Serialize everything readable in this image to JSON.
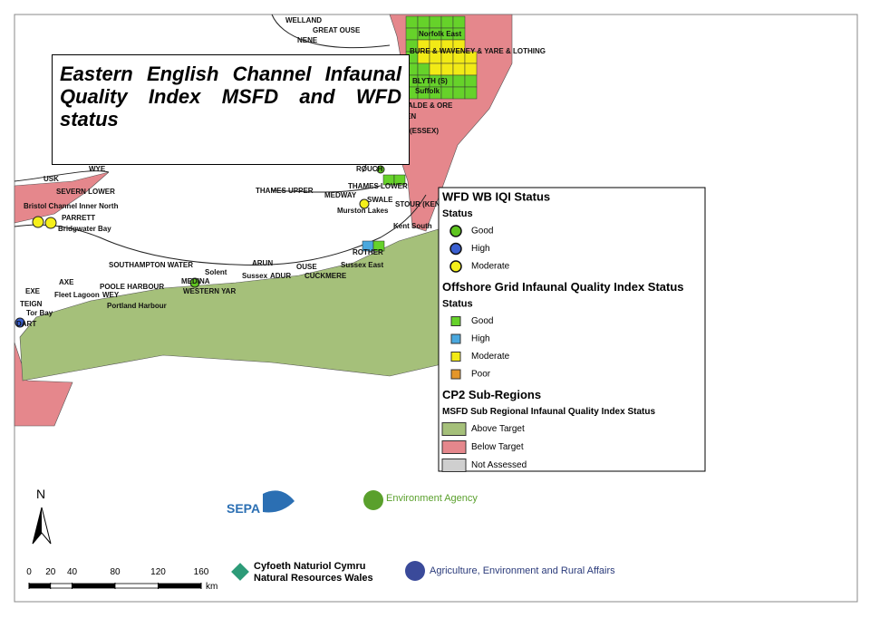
{
  "title": "Eastern English Channel Infaunal Quality Index MSFD and WFD status",
  "place_labels": [
    "WELLAND",
    "GREAT OUSE",
    "NENE",
    "Norfolk East",
    "BURE & WAVENEY & YARE & LOTHING",
    "BLYTH (S)",
    "Suffolk",
    "ALDE & ORE",
    "EN",
    "(ESSEX)",
    "ROUCH",
    "WYE",
    "USK",
    "SEVERN LOWER",
    "Bristol Channel Inner North",
    "PARRETT",
    "Bridgwater Bay",
    "THAMES UPPER",
    "THAMES LOWER",
    "MEDWAY",
    "SWALE",
    "Murston Lakes",
    "STOUR (KENT)",
    "Kent South",
    "ROTHER",
    "Sussex East",
    "ARUN",
    "OUSE",
    "Sussex",
    "ADUR",
    "CUCKMERE",
    "SOUTHAMPTON WATER",
    "Solent",
    "AXE",
    "POOLE HARBOUR",
    "MEDINA",
    "WESTERN YAR",
    "EXE",
    "Fleet Lagoon",
    "WEY",
    "Portland Harbour",
    "TEIGN",
    "Tor Bay",
    "DART"
  ],
  "legend": [
    {
      "heading": "WFD WB IQI Status",
      "subheading": "Status",
      "shape": "circle",
      "items": [
        {
          "label": "Good",
          "color": "#5ec41e"
        },
        {
          "label": "High",
          "color": "#3a5fd0"
        },
        {
          "label": "Moderate",
          "color": "#f5ef1a"
        }
      ]
    },
    {
      "heading": "Offshore Grid Infaunal Quality Index Status",
      "subheading": "Status",
      "shape": "square",
      "items": [
        {
          "label": "Good",
          "color": "#66d22a"
        },
        {
          "label": "High",
          "color": "#4aa8de"
        },
        {
          "label": "Moderate",
          "color": "#f2ea16"
        },
        {
          "label": "Poor",
          "color": "#e3962a"
        }
      ]
    },
    {
      "heading": "CP2 Sub-Regions",
      "subheading": "MSFD Sub Regional Infaunal Quality Index Status",
      "shape": "box",
      "items": [
        {
          "label": "Above Target",
          "color": "#a5c07a"
        },
        {
          "label": "Below Target",
          "color": "#e5878c"
        },
        {
          "label": "Not Assessed",
          "color": "#cfcfcf"
        }
      ]
    }
  ],
  "north": "N",
  "scale": {
    "ticks": [
      0,
      20,
      40,
      80,
      120,
      160
    ],
    "unit": "km"
  },
  "logos": {
    "sepa": "SEPA",
    "ea": "Environment Agency",
    "nrw_cy": "Cyfoeth Naturiol Cymru",
    "nrw_en": "Natural Resources Wales",
    "daera": "Agriculture, Environment and Rural Affairs"
  }
}
